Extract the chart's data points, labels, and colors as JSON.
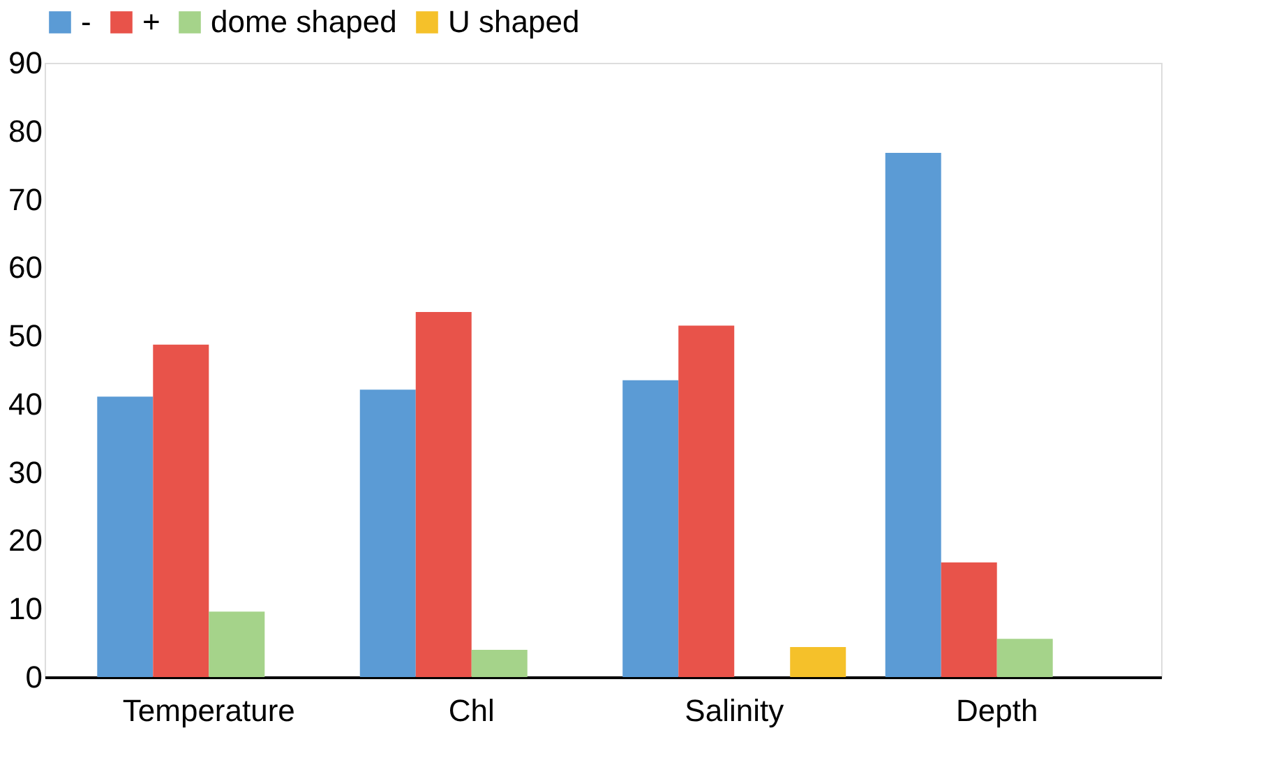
{
  "chart_data": {
    "type": "bar",
    "categories": [
      "Temperature",
      "Chl",
      "Salinity",
      "Depth"
    ],
    "series": [
      {
        "name": "-",
        "color": "#5b9bd5",
        "values": [
          41.1,
          42.1,
          43.5,
          76.8
        ]
      },
      {
        "name": "+",
        "color": "#e8534a",
        "values": [
          48.7,
          53.5,
          51.5,
          16.8
        ]
      },
      {
        "name": "dome shaped",
        "color": "#a5d38a",
        "values": [
          9.6,
          4.0,
          null,
          5.6
        ]
      },
      {
        "name": "U shaped",
        "color": "#f5c12a",
        "values": [
          null,
          null,
          4.4,
          null
        ]
      }
    ],
    "ylim": [
      0,
      90
    ],
    "yticks": [
      0,
      10,
      20,
      30,
      40,
      50,
      60,
      70,
      80,
      90
    ],
    "grid": false,
    "legend": "top"
  }
}
